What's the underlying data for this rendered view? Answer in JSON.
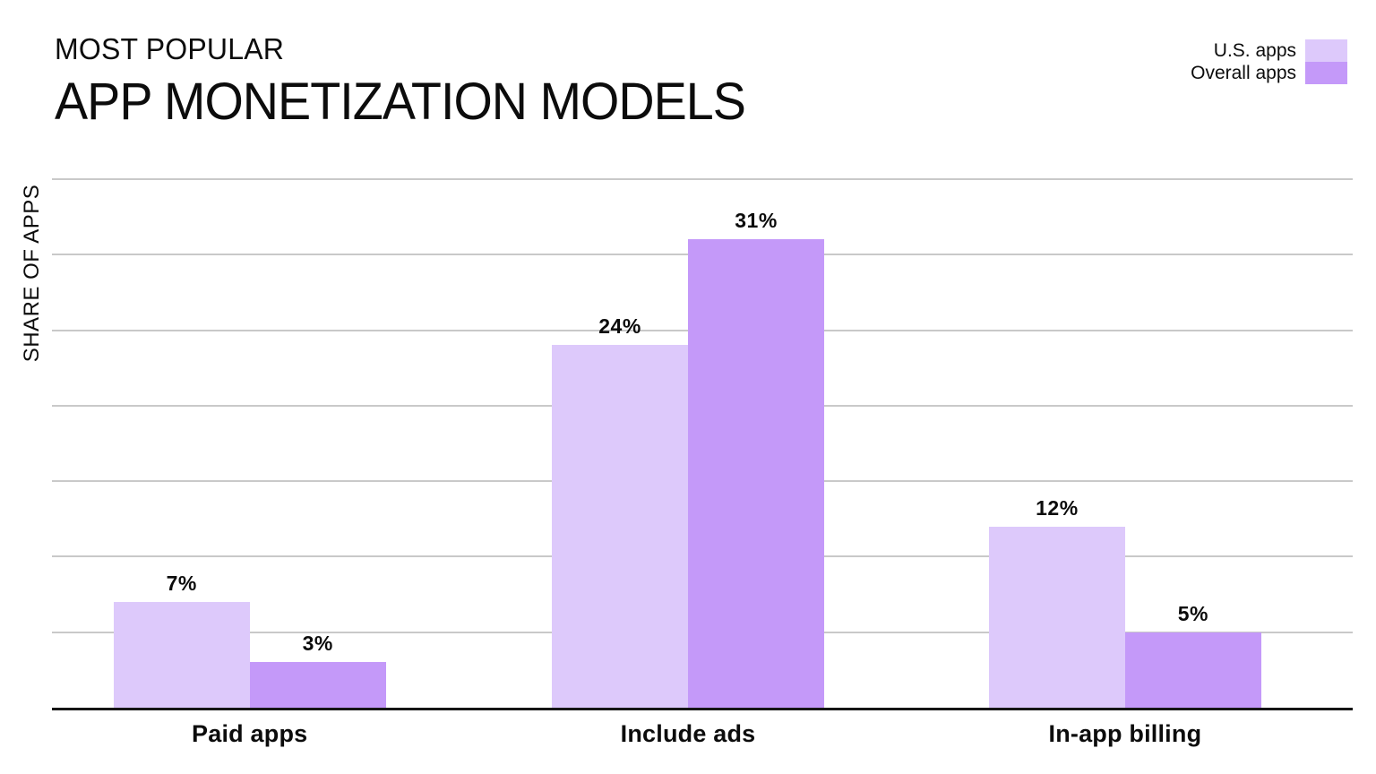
{
  "header": {
    "kicker": "MOST POPULAR",
    "title": "APP MONETIZATION MODELS"
  },
  "legend": {
    "items": [
      {
        "label": "U.S. apps",
        "color": "#ddc9fb"
      },
      {
        "label": "Overall apps",
        "color": "#c499f9"
      }
    ]
  },
  "colors": {
    "us_apps": "#ddc9fb",
    "overall_apps": "#c499f9",
    "gridline": "#c9c9c9",
    "axis": "#161616",
    "text": "#0c0c0c"
  },
  "chart_data": {
    "type": "bar",
    "title": "MOST POPULAR APP MONETIZATION MODELS",
    "categories": [
      "Paid apps",
      "Include ads",
      "In-app billing"
    ],
    "series": [
      {
        "name": "U.S. apps",
        "color": "#ddc9fb",
        "values": [
          7,
          24,
          12
        ]
      },
      {
        "name": "Overall apps",
        "color": "#c499f9",
        "values": [
          3,
          31,
          5
        ]
      }
    ],
    "value_suffix": "%",
    "xlabel": "",
    "ylabel": "SHARE OF APPS",
    "ylim": [
      0,
      35
    ],
    "gridline_step": 5,
    "grid": true,
    "y_tick_labels_visible": false,
    "legend_position": "top-right",
    "group_centers_pct": [
      15.2,
      48.9,
      82.5
    ]
  }
}
